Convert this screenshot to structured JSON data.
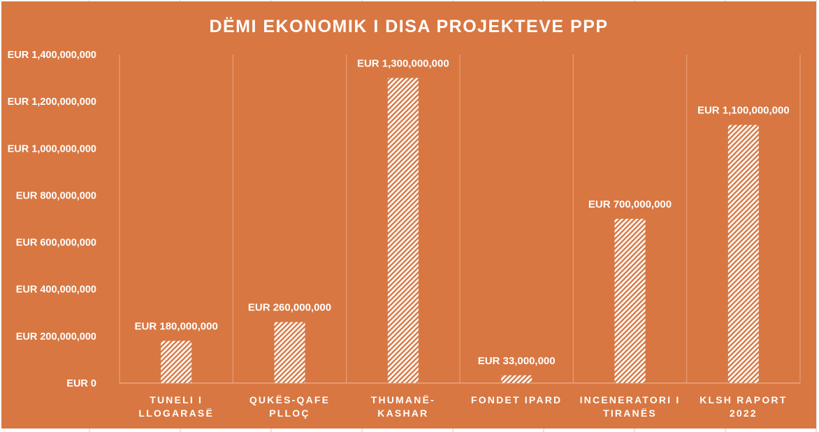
{
  "chart_data": {
    "type": "bar",
    "title": "DËMI EKONOMIK I DISA PROJEKTEVE PPP",
    "categories": [
      [
        "TUNELI I",
        "LLOGARASË"
      ],
      [
        "QUKËS-QAFE",
        "PLLOÇ"
      ],
      [
        "THUMANË-",
        "KASHAR"
      ],
      [
        "FONDET IPARD"
      ],
      [
        "INCENERATORI I",
        "TIRANËS"
      ],
      [
        "KLSH RAPORT",
        "2022"
      ]
    ],
    "values": [
      180000000,
      260000000,
      1300000000,
      33000000,
      700000000,
      1100000000
    ],
    "data_labels": [
      "EUR 180,000,000",
      "EUR 260,000,000",
      "EUR 1,300,000,000",
      "EUR 33,000,000",
      "EUR 700,000,000",
      "EUR 1,100,000,000"
    ],
    "yticks": [
      0,
      200000000,
      400000000,
      600000000,
      800000000,
      1000000000,
      1200000000,
      1400000000
    ],
    "ytick_labels": [
      "EUR 0",
      "EUR 200,000,000",
      "EUR 400,000,000",
      "EUR 600,000,000",
      "EUR 800,000,000",
      "EUR 1,000,000,000",
      "EUR 1,200,000,000",
      "EUR 1,400,000,000"
    ],
    "ylim": [
      0,
      1400000000
    ],
    "xlabel": "",
    "ylabel": "",
    "grid": "vertical category separators",
    "legend": "none",
    "colors": {
      "background": "#D87742",
      "bar": "#FFFFFF",
      "text": "#FFFFFF",
      "grid": "#EBA57E"
    }
  }
}
